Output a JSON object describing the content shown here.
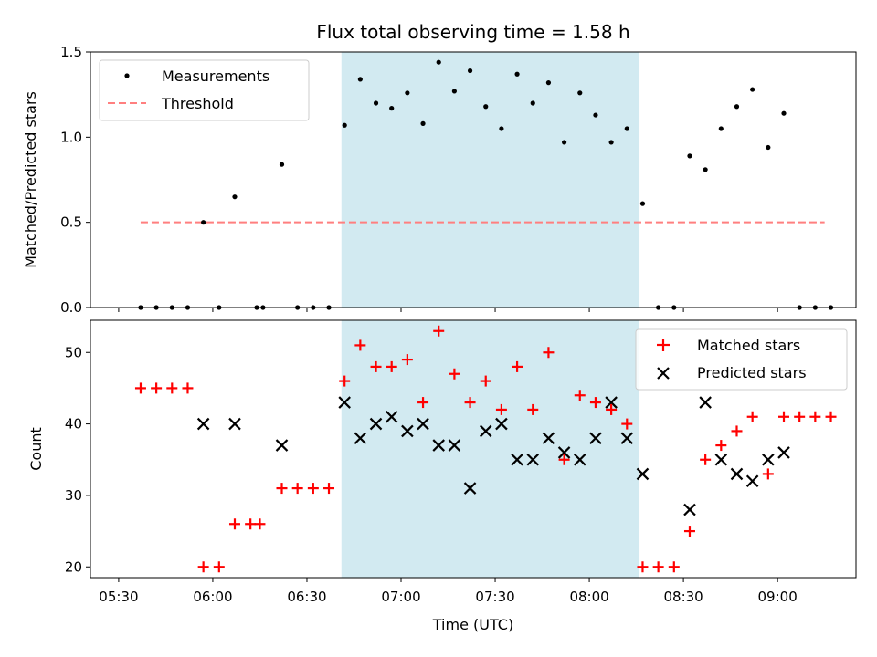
{
  "colors": {
    "span": "#add8e6",
    "matched": "#ff0000",
    "predicted": "#000000",
    "threshold": "#ff7f7f",
    "measurement": "#000000"
  },
  "chart_data": [
    {
      "type": "scatter",
      "title": "Flux total observing time = 1.58 h",
      "xlabel": "",
      "ylabel": "Matched/Predicted stars",
      "ylim": [
        0,
        1.5
      ],
      "yticks": [
        "0.0",
        "0.5",
        "1.0",
        "1.5"
      ],
      "xlim": [
        "05:21",
        "09:25"
      ],
      "grid": false,
      "legend_position": "upper left",
      "highlight_span": [
        "06:41",
        "08:16"
      ],
      "series": [
        {
          "name": "Measurements",
          "marker": "dot",
          "x": [
            "05:37",
            "05:42",
            "05:47",
            "05:52",
            "05:57",
            "06:02",
            "06:07",
            "06:14",
            "06:16",
            "06:22",
            "06:27",
            "06:32",
            "06:37",
            "06:42",
            "06:47",
            "06:52",
            "06:57",
            "07:02",
            "07:07",
            "07:12",
            "07:17",
            "07:22",
            "07:27",
            "07:32",
            "07:37",
            "07:42",
            "07:47",
            "07:52",
            "07:57",
            "08:02",
            "08:07",
            "08:12",
            "08:17",
            "08:22",
            "08:27",
            "08:32",
            "08:37",
            "08:42",
            "08:47",
            "08:52",
            "08:57",
            "09:02",
            "09:07",
            "09:12",
            "09:17"
          ],
          "values": [
            0,
            0,
            0,
            0,
            0.5,
            0,
            0.65,
            0,
            0,
            0.84,
            0,
            0,
            0,
            1.07,
            1.34,
            1.2,
            1.17,
            1.26,
            1.08,
            1.44,
            1.27,
            1.39,
            1.18,
            1.05,
            1.37,
            1.2,
            1.32,
            0.97,
            1.26,
            1.13,
            0.97,
            1.05,
            0.61,
            0,
            0,
            0.89,
            0.81,
            1.05,
            1.18,
            1.28,
            0.94,
            1.14,
            0,
            0,
            0
          ]
        },
        {
          "name": "Threshold",
          "style": "dashed",
          "x": [
            "05:37",
            "09:15"
          ],
          "values": [
            0.5,
            0.5
          ]
        }
      ]
    },
    {
      "type": "scatter",
      "xlabel": "Time (UTC)",
      "ylabel": "Count",
      "ylim": [
        18.5,
        54.5
      ],
      "yticks": [
        "20",
        "30",
        "40",
        "50"
      ],
      "xticks": [
        "05:30",
        "06:00",
        "06:30",
        "07:00",
        "07:30",
        "08:00",
        "08:30",
        "09:00"
      ],
      "xlim": [
        "05:21",
        "09:25"
      ],
      "grid": false,
      "legend_position": "upper right",
      "highlight_span": [
        "06:41",
        "08:16"
      ],
      "series": [
        {
          "name": "Matched stars",
          "marker": "+",
          "x": [
            "05:37",
            "05:42",
            "05:47",
            "05:52",
            "05:57",
            "06:02",
            "06:07",
            "06:12",
            "06:15",
            "06:22",
            "06:27",
            "06:32",
            "06:37",
            "06:42",
            "06:47",
            "06:52",
            "06:57",
            "07:02",
            "07:07",
            "07:12",
            "07:17",
            "07:22",
            "07:27",
            "07:32",
            "07:37",
            "07:42",
            "07:47",
            "07:52",
            "07:57",
            "08:02",
            "08:07",
            "08:12",
            "08:17",
            "08:22",
            "08:27",
            "08:32",
            "08:37",
            "08:42",
            "08:47",
            "08:52",
            "08:57",
            "09:02",
            "09:07",
            "09:12",
            "09:17"
          ],
          "values": [
            45,
            45,
            45,
            45,
            20,
            20,
            26,
            26,
            26,
            31,
            31,
            31,
            31,
            46,
            51,
            48,
            48,
            49,
            43,
            53,
            47,
            43,
            46,
            42,
            48,
            42,
            50,
            35,
            44,
            43,
            42,
            40,
            20,
            20,
            20,
            25,
            35,
            37,
            39,
            41,
            33,
            41,
            41,
            41,
            41
          ]
        },
        {
          "name": "Predicted stars",
          "marker": "x",
          "x": [
            "05:57",
            "06:07",
            "06:22",
            "06:42",
            "06:47",
            "06:52",
            "06:57",
            "07:02",
            "07:07",
            "07:12",
            "07:17",
            "07:22",
            "07:27",
            "07:32",
            "07:37",
            "07:42",
            "07:47",
            "07:52",
            "07:57",
            "08:02",
            "08:07",
            "08:12",
            "08:17",
            "08:32",
            "08:37",
            "08:42",
            "08:47",
            "08:52",
            "08:57",
            "09:02"
          ],
          "values": [
            40,
            40,
            37,
            43,
            38,
            40,
            41,
            39,
            40,
            37,
            37,
            31,
            39,
            40,
            35,
            35,
            38,
            36,
            35,
            38,
            43,
            38,
            33,
            28,
            43,
            35,
            33,
            32,
            35,
            36
          ]
        }
      ]
    }
  ]
}
